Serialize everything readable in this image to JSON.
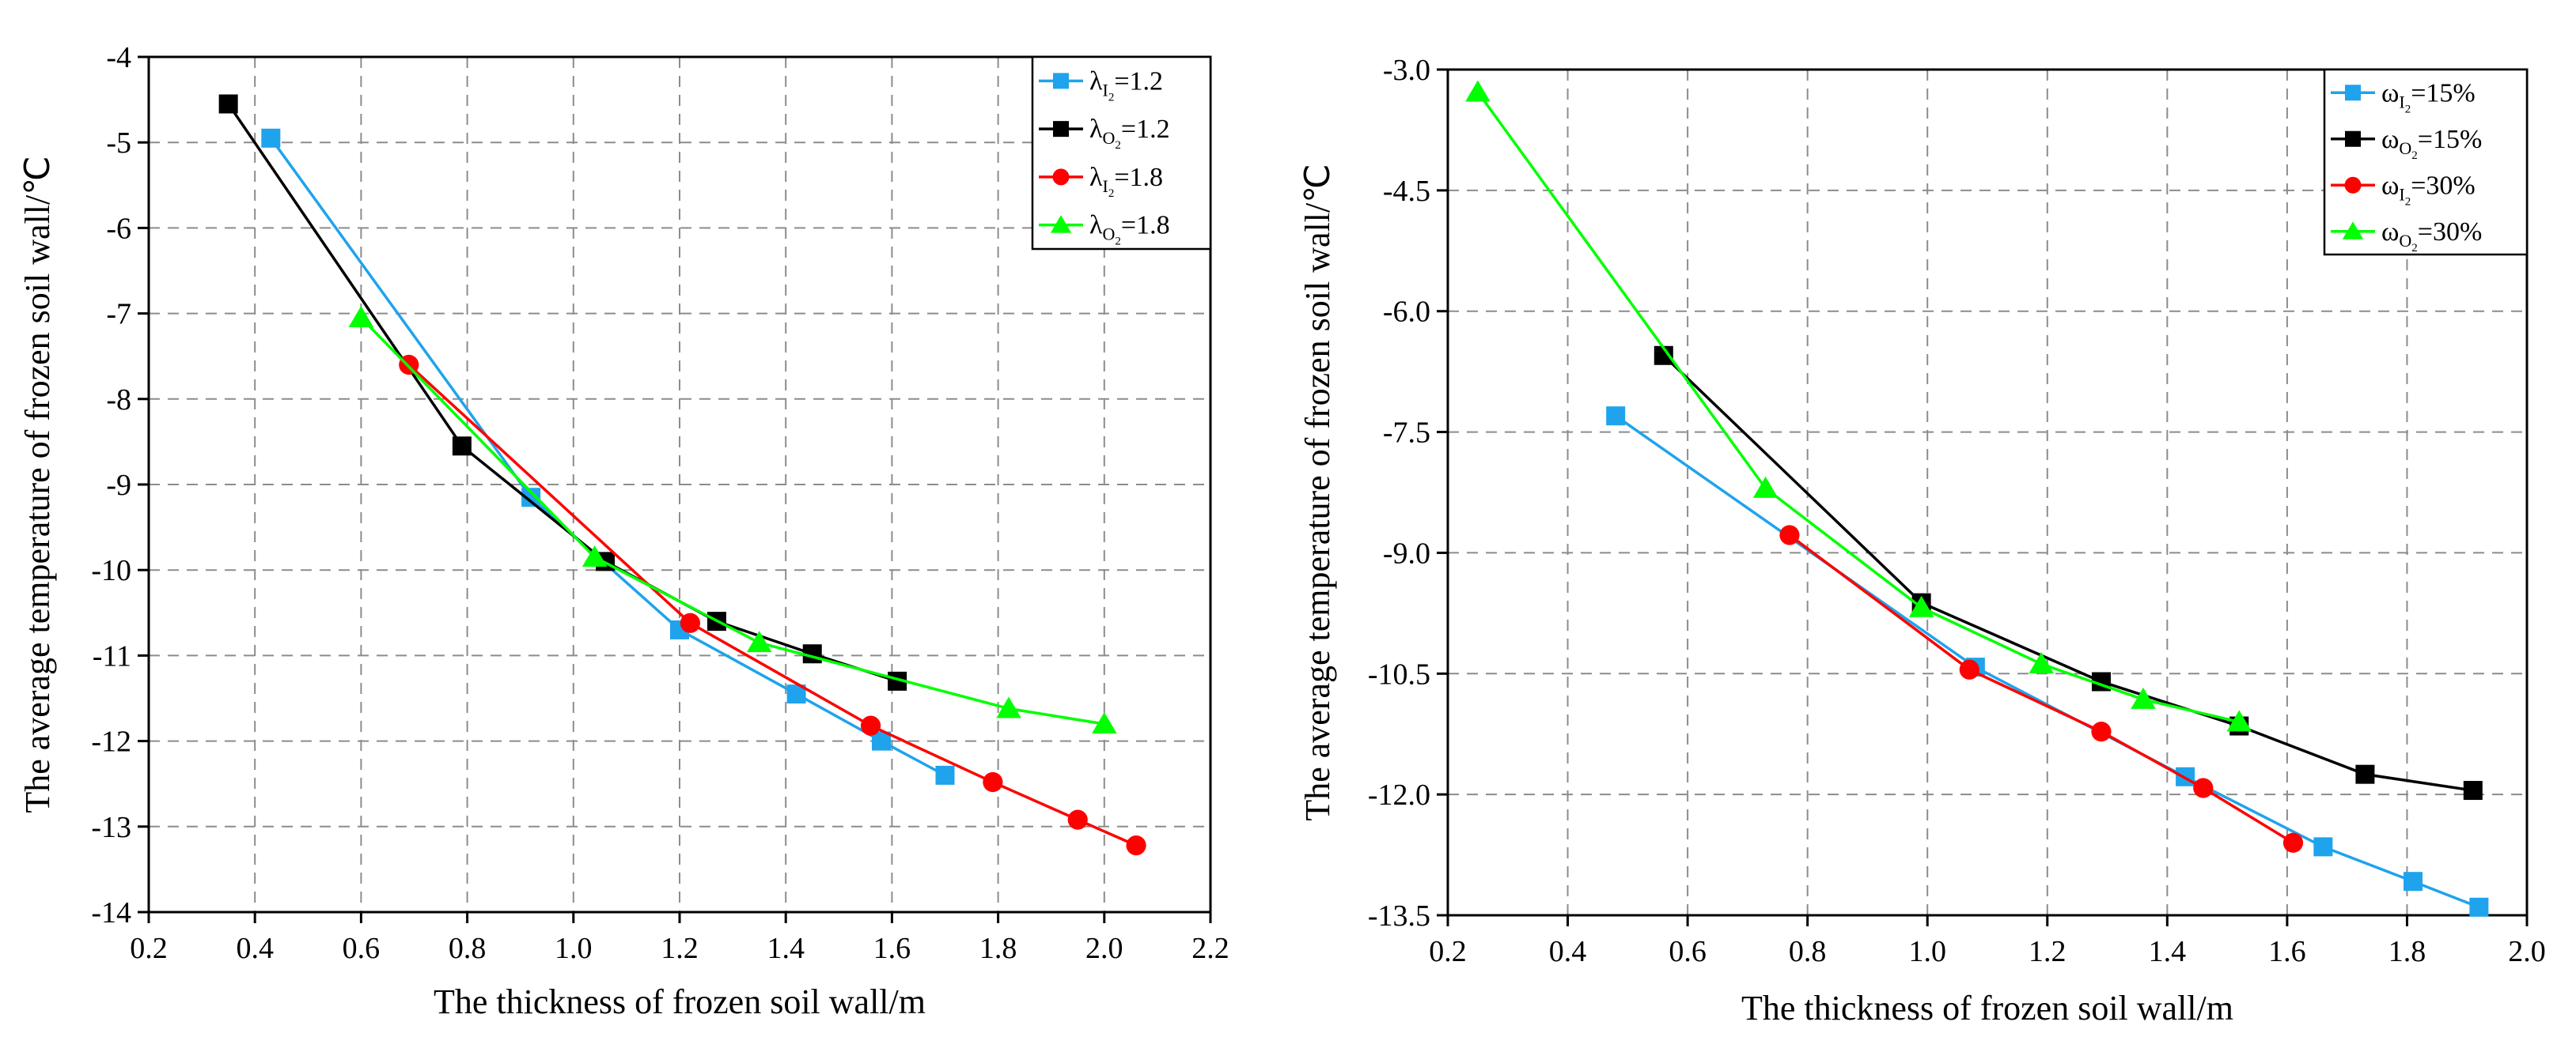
{
  "chart_data": [
    {
      "type": "line",
      "id": "left",
      "xlabel": "The thickness of frozen soil wall/m",
      "ylabel": "The average temperature of frozen soil wall/℃",
      "xlim": [
        0.2,
        2.2
      ],
      "ylim": [
        -14,
        -4
      ],
      "xticks": [
        0.2,
        0.4,
        0.6,
        0.8,
        1.0,
        1.2,
        1.4,
        1.6,
        1.8,
        2.0,
        2.2
      ],
      "xtick_labels": [
        "0.2",
        "0.4",
        "0.6",
        "0.8",
        "1.0",
        "1.2",
        "1.4",
        "1.6",
        "1.8",
        "2.0",
        "2.2"
      ],
      "yticks": [
        -14,
        -13,
        -12,
        -11,
        -10,
        -9,
        -8,
        -7,
        -6,
        -5,
        -4
      ],
      "ytick_labels": [
        "-14",
        "-13",
        "-12",
        "-11",
        "-10",
        "-9",
        "-8",
        "-7",
        "-6",
        "-5",
        "-4"
      ],
      "legend_position": "top-right",
      "series": [
        {
          "name": "λI2=1.2",
          "sym": "λ",
          "sub": "I",
          "subsub": "2",
          "val": "=1.2",
          "color": "#1fa3ec",
          "marker": "square",
          "x": [
            0.43,
            0.92,
            1.2,
            1.42,
            1.58,
            1.7
          ],
          "y": [
            -4.95,
            -9.15,
            -10.7,
            -11.45,
            -12.0,
            -12.4
          ]
        },
        {
          "name": "λO2=1.2",
          "sym": "λ",
          "sub": "O",
          "subsub": "2",
          "val": "=1.2",
          "color": "#000000",
          "marker": "square",
          "x": [
            0.35,
            0.79,
            1.06,
            1.27,
            1.45,
            1.61
          ],
          "y": [
            -4.55,
            -8.55,
            -9.9,
            -10.6,
            -10.98,
            -11.3
          ]
        },
        {
          "name": "λI2=1.8",
          "sym": "λ",
          "sub": "I",
          "subsub": "2",
          "val": "=1.8",
          "color": "#ff0000",
          "marker": "circle",
          "x": [
            0.69,
            1.22,
            1.56,
            1.79,
            1.95,
            2.06
          ],
          "y": [
            -7.6,
            -10.62,
            -11.82,
            -12.48,
            -12.92,
            -13.22
          ]
        },
        {
          "name": "λO2=1.8",
          "sym": "λ",
          "sub": "O",
          "subsub": "2",
          "val": "=1.8",
          "color": "#00ff00",
          "marker": "triangle",
          "x": [
            0.6,
            1.04,
            1.35,
            1.82,
            2.0
          ],
          "y": [
            -7.05,
            -9.85,
            -10.85,
            -11.62,
            -11.8
          ]
        }
      ]
    },
    {
      "type": "line",
      "id": "right",
      "xlabel": "The thickness of frozen soil wall/m",
      "ylabel": "The average temperature of frozen soil wall/℃",
      "xlim": [
        0.2,
        2.0
      ],
      "ylim": [
        -13.5,
        -3.0
      ],
      "xticks": [
        0.2,
        0.4,
        0.6,
        0.8,
        1.0,
        1.2,
        1.4,
        1.6,
        1.8,
        2.0
      ],
      "xtick_labels": [
        "0.2",
        "0.4",
        "0.6",
        "0.8",
        "1.0",
        "1.2",
        "1.4",
        "1.6",
        "1.8",
        "2.0"
      ],
      "yticks": [
        -13.5,
        -12.0,
        -10.5,
        -9.0,
        -7.5,
        -6.0,
        -4.5,
        -3.0
      ],
      "ytick_labels": [
        "-13.5",
        "-12.0",
        "-10.5",
        "-9.0",
        "-7.5",
        "-6.0",
        "-4.5",
        "-3.0"
      ],
      "legend_position": "top-right",
      "series": [
        {
          "name": "ωI2=15%",
          "sym": "ω",
          "sub": "I",
          "subsub": "2",
          "val": "=15%",
          "color": "#1fa3ec",
          "marker": "square",
          "x": [
            0.48,
            1.08,
            1.43,
            1.66,
            1.81,
            1.92
          ],
          "y": [
            -7.3,
            -10.42,
            -11.78,
            -12.65,
            -13.08,
            -13.4
          ]
        },
        {
          "name": "ωO2=15%",
          "sym": "ω",
          "sub": "O",
          "subsub": "2",
          "val": "=15%",
          "color": "#000000",
          "marker": "square",
          "x": [
            0.56,
            0.99,
            1.29,
            1.52,
            1.73,
            1.91
          ],
          "y": [
            -6.55,
            -9.62,
            -10.6,
            -11.15,
            -11.75,
            -11.95
          ]
        },
        {
          "name": "ωI2=30%",
          "sym": "ω",
          "sub": "I",
          "subsub": "2",
          "val": "=30%",
          "color": "#ff0000",
          "marker": "circle",
          "x": [
            0.77,
            1.07,
            1.29,
            1.46,
            1.61
          ],
          "y": [
            -8.78,
            -10.45,
            -11.22,
            -11.92,
            -12.6
          ]
        },
        {
          "name": "ωO2=30%",
          "sym": "ω",
          "sub": "O",
          "subsub": "2",
          "val": "=30%",
          "color": "#00ff00",
          "marker": "triangle",
          "x": [
            0.25,
            0.73,
            0.99,
            1.19,
            1.36,
            1.52
          ],
          "y": [
            -3.28,
            -8.2,
            -9.68,
            -10.38,
            -10.82,
            -11.1
          ]
        }
      ]
    }
  ]
}
